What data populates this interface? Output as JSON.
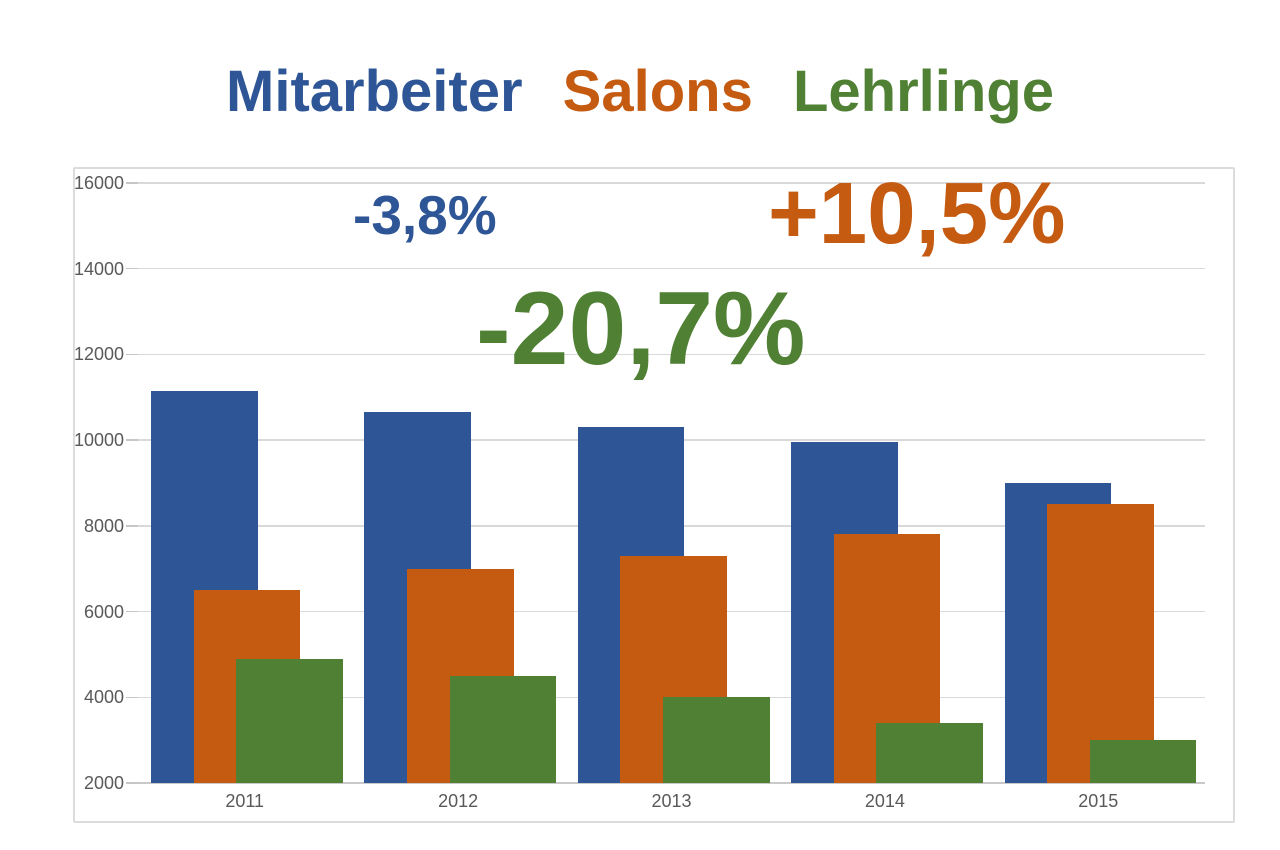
{
  "chart_data": {
    "type": "bar",
    "title": "Mitarbeiter Salons Lehrlinge",
    "categories": [
      "2011",
      "2012",
      "2013",
      "2014",
      "2015"
    ],
    "series": [
      {
        "name": "Mitarbeiter",
        "color": "#2E5596",
        "values": [
          11150,
          10650,
          10300,
          9950,
          9000
        ]
      },
      {
        "name": "Salons",
        "color": "#C55A11",
        "values": [
          6500,
          7000,
          7300,
          7800,
          8500
        ]
      },
      {
        "name": "Lehrlinge",
        "color": "#4F8033",
        "values": [
          4900,
          4500,
          4000,
          3400,
          3000
        ]
      }
    ],
    "annotations": {
      "mitarbeiter": "-3,8%",
      "salons": "+10,5%",
      "lehrlinge": "-20,7%"
    },
    "ylim": [
      2000,
      16000
    ],
    "yticks": [
      2000,
      4000,
      6000,
      8000,
      10000,
      12000,
      14000,
      16000
    ],
    "xlabel": "",
    "ylabel": "",
    "grid": true,
    "legend_position": "top-as-title",
    "colors": {
      "gridline": "#d9d9d9",
      "axis_text": "#595959",
      "frame_border": "#dcdcdc",
      "tick": "#c6c6c6"
    }
  }
}
